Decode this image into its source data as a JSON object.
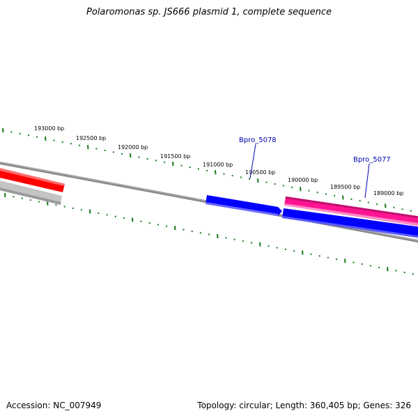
{
  "title": "Polaromonas sp. JS666 plasmid 1, complete sequence",
  "footer": {
    "accession": "Accession: NC_007949",
    "summary": "Topology: circular; Length: 360,405 bp; Genes: 326"
  },
  "scale_labels": [
    "193000 bp",
    "192500 bp",
    "192000 bp",
    "191500 bp",
    "191000 bp",
    "190500 bp",
    "190000 bp",
    "189500 bp",
    "189000 bp"
  ],
  "genes": [
    {
      "name": "Bpro_5078",
      "strand": "forward",
      "color": "#0000ff"
    },
    {
      "name": "Bpro_5077",
      "strand": "reverse",
      "color": "#ff1493"
    }
  ],
  "colors": {
    "backbone": "#777777",
    "ruler": "#1a7a1a",
    "gene_label": "#0000b4",
    "red_feature": "#ff0000",
    "gray_feature": "#bbbbbb",
    "blue_feature": "#0000ff",
    "pink_feature": "#ff1493"
  }
}
